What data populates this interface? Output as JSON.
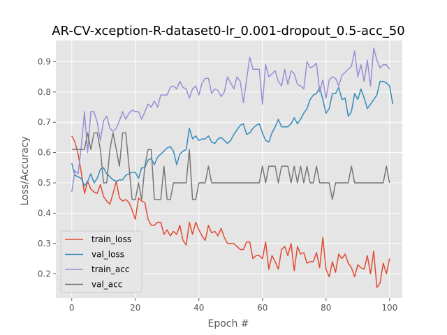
{
  "chart_data": {
    "type": "line",
    "title": "AR-CV-xception-R-dataset0-lr_0.001-dropout_0.5-acc_50",
    "xlabel": "Epoch #",
    "ylabel": "Loss/Accuracy",
    "xlim": [
      -5,
      104
    ],
    "ylim": [
      0.12,
      0.97
    ],
    "xticks": [
      0,
      20,
      40,
      60,
      80,
      100
    ],
    "yticks": [
      0.2,
      0.3,
      0.4,
      0.5,
      0.6,
      0.7,
      0.8,
      0.9
    ],
    "grid": true,
    "legend_position": "lower-left",
    "series": [
      {
        "name": "train_loss",
        "color": "#E24A33",
        "values": [
          0.655,
          0.635,
          0.595,
          0.535,
          0.465,
          0.505,
          0.48,
          0.47,
          0.465,
          0.495,
          0.455,
          0.44,
          0.43,
          0.465,
          0.505,
          0.45,
          0.44,
          0.445,
          0.435,
          0.41,
          0.38,
          0.45,
          0.44,
          0.435,
          0.38,
          0.36,
          0.36,
          0.37,
          0.37,
          0.33,
          0.345,
          0.325,
          0.34,
          0.33,
          0.36,
          0.31,
          0.295,
          0.37,
          0.33,
          0.37,
          0.345,
          0.325,
          0.31,
          0.36,
          0.335,
          0.34,
          0.325,
          0.35,
          0.32,
          0.3,
          0.3,
          0.3,
          0.29,
          0.28,
          0.28,
          0.305,
          0.305,
          0.25,
          0.26,
          0.26,
          0.25,
          0.305,
          0.215,
          0.26,
          0.24,
          0.215,
          0.28,
          0.29,
          0.26,
          0.3,
          0.21,
          0.29,
          0.265,
          0.27,
          0.235,
          0.24,
          0.24,
          0.27,
          0.22,
          0.32,
          0.215,
          0.19,
          0.24,
          0.205,
          0.265,
          0.25,
          0.265,
          0.235,
          0.22,
          0.19,
          0.23,
          0.22,
          0.215,
          0.26,
          0.2,
          0.275,
          0.155,
          0.17,
          0.235,
          0.2,
          0.25
        ]
      },
      {
        "name": "val_loss",
        "color": "#348ABD",
        "values": [
          0.565,
          0.525,
          0.52,
          0.515,
          0.49,
          0.505,
          0.53,
          0.5,
          0.515,
          0.545,
          0.55,
          0.53,
          0.52,
          0.51,
          0.505,
          0.51,
          0.51,
          0.525,
          0.53,
          0.535,
          0.535,
          0.515,
          0.55,
          0.55,
          0.575,
          0.58,
          0.56,
          0.585,
          0.595,
          0.605,
          0.615,
          0.62,
          0.605,
          0.56,
          0.595,
          0.605,
          0.61,
          0.68,
          0.645,
          0.655,
          0.64,
          0.645,
          0.645,
          0.655,
          0.635,
          0.63,
          0.645,
          0.65,
          0.64,
          0.63,
          0.64,
          0.66,
          0.675,
          0.69,
          0.695,
          0.66,
          0.665,
          0.68,
          0.69,
          0.695,
          0.665,
          0.64,
          0.635,
          0.665,
          0.685,
          0.71,
          0.685,
          0.685,
          0.685,
          0.695,
          0.715,
          0.695,
          0.71,
          0.73,
          0.745,
          0.775,
          0.79,
          0.795,
          0.815,
          0.775,
          0.73,
          0.745,
          0.795,
          0.795,
          0.815,
          0.775,
          0.78,
          0.72,
          0.735,
          0.795,
          0.775,
          0.81,
          0.78,
          0.745,
          0.76,
          0.775,
          0.79,
          0.835,
          0.835,
          0.83,
          0.82,
          0.76
        ]
      },
      {
        "name": "train_acc",
        "color": "#988ED5",
        "values": [
          0.47,
          0.54,
          0.53,
          0.62,
          0.735,
          0.6,
          0.735,
          0.735,
          0.7,
          0.64,
          0.705,
          0.72,
          0.68,
          0.67,
          0.68,
          0.705,
          0.735,
          0.71,
          0.73,
          0.74,
          0.735,
          0.735,
          0.71,
          0.735,
          0.76,
          0.75,
          0.77,
          0.75,
          0.79,
          0.79,
          0.79,
          0.815,
          0.82,
          0.81,
          0.835,
          0.815,
          0.81,
          0.78,
          0.81,
          0.82,
          0.79,
          0.83,
          0.845,
          0.845,
          0.795,
          0.81,
          0.805,
          0.785,
          0.8,
          0.85,
          0.83,
          0.81,
          0.85,
          0.835,
          0.765,
          0.84,
          0.915,
          0.875,
          0.875,
          0.875,
          0.76,
          0.89,
          0.85,
          0.86,
          0.87,
          0.835,
          0.82,
          0.875,
          0.825,
          0.87,
          0.86,
          0.825,
          0.82,
          0.81,
          0.9,
          0.88,
          0.885,
          0.895,
          0.8,
          0.84,
          0.78,
          0.84,
          0.85,
          0.845,
          0.82,
          0.855,
          0.865,
          0.875,
          0.885,
          0.935,
          0.85,
          0.89,
          0.835,
          0.905,
          0.82,
          0.945,
          0.905,
          0.88,
          0.89,
          0.89,
          0.875
        ]
      },
      {
        "name": "val_acc",
        "color": "#777777",
        "values": [
          0.61,
          0.61,
          0.61,
          0.61,
          0.61,
          0.665,
          0.61,
          0.665,
          0.665,
          0.61,
          0.5,
          0.5,
          0.61,
          0.665,
          0.61,
          0.555,
          0.665,
          0.665,
          0.555,
          0.445,
          0.445,
          0.5,
          0.445,
          0.555,
          0.61,
          0.61,
          0.445,
          0.445,
          0.445,
          0.555,
          0.445,
          0.445,
          0.5,
          0.5,
          0.5,
          0.5,
          0.5,
          0.61,
          0.445,
          0.445,
          0.5,
          0.5,
          0.5,
          0.555,
          0.5,
          0.5,
          0.5,
          0.5,
          0.5,
          0.5,
          0.5,
          0.5,
          0.5,
          0.5,
          0.5,
          0.5,
          0.5,
          0.5,
          0.5,
          0.5,
          0.555,
          0.5,
          0.555,
          0.555,
          0.555,
          0.5,
          0.555,
          0.555,
          0.555,
          0.5,
          0.555,
          0.5,
          0.555,
          0.5,
          0.555,
          0.5,
          0.5,
          0.555,
          0.5,
          0.5,
          0.5,
          0.5,
          0.445,
          0.5,
          0.5,
          0.5,
          0.5,
          0.5,
          0.555,
          0.5,
          0.5,
          0.5,
          0.5,
          0.5,
          0.5,
          0.5,
          0.5,
          0.5,
          0.5,
          0.555,
          0.5
        ]
      }
    ]
  }
}
